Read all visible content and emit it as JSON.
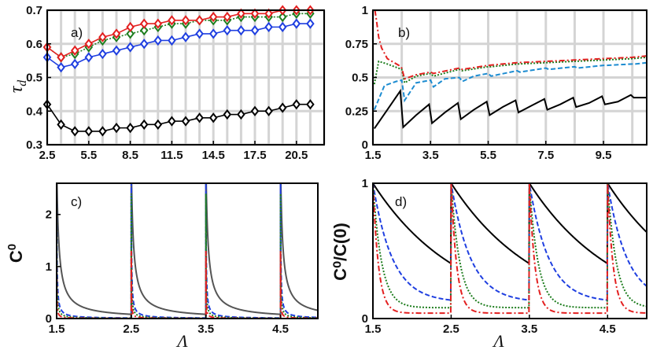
{
  "chart_data": [
    {
      "id": "a",
      "type": "line",
      "panel_label": "a)",
      "ylabel": "τ_d",
      "ylabel_sub": "d",
      "ylabel_main": "τ",
      "xlabel": "",
      "xlim": [
        2.5,
        22.5
      ],
      "ylim": [
        0.3,
        0.7
      ],
      "grid": true,
      "xticks": [
        2.5,
        5.5,
        8.5,
        11.5,
        14.5,
        17.5,
        20.5
      ],
      "xtick_labels": [
        "2.5",
        "5.5",
        "8.5",
        "11.5",
        "14.5",
        "17.5",
        "20.5"
      ],
      "yticks": [
        0.3,
        0.4,
        0.5,
        0.6,
        0.7
      ],
      "ytick_labels": [
        "0.3",
        "0.4",
        "0.5",
        "0.6",
        "0.7"
      ],
      "x": [
        2.5,
        3.5,
        4.5,
        5.5,
        6.5,
        7.5,
        8.5,
        9.5,
        10.5,
        11.5,
        12.5,
        13.5,
        14.5,
        15.5,
        16.5,
        17.5,
        18.5,
        19.5,
        20.5,
        21.5
      ],
      "series": [
        {
          "name": "black",
          "color": "#000000",
          "dash": "",
          "marker": "diamond",
          "values": [
            0.42,
            0.36,
            0.34,
            0.34,
            0.34,
            0.35,
            0.35,
            0.36,
            0.36,
            0.37,
            0.37,
            0.38,
            0.38,
            0.39,
            0.39,
            0.4,
            0.4,
            0.41,
            0.42,
            0.42
          ]
        },
        {
          "name": "blue",
          "color": "#1f3fe0",
          "dash": "",
          "marker": "diamond",
          "values": [
            0.56,
            0.53,
            0.54,
            0.56,
            0.57,
            0.58,
            0.59,
            0.6,
            0.61,
            0.61,
            0.62,
            0.63,
            0.63,
            0.64,
            0.64,
            0.64,
            0.65,
            0.65,
            0.66,
            0.66
          ]
        },
        {
          "name": "green",
          "color": "#1e7d1e",
          "dash": "2,2",
          "marker": "diamond",
          "values": [
            0.59,
            0.56,
            0.57,
            0.59,
            0.61,
            0.62,
            0.63,
            0.64,
            0.65,
            0.66,
            0.66,
            0.67,
            0.67,
            0.67,
            0.68,
            0.68,
            0.68,
            0.68,
            0.69,
            0.69
          ]
        },
        {
          "name": "red",
          "color": "#e32020",
          "dash": "",
          "marker": "diamond",
          "values": [
            0.59,
            0.56,
            0.58,
            0.6,
            0.62,
            0.63,
            0.65,
            0.66,
            0.66,
            0.67,
            0.67,
            0.67,
            0.68,
            0.68,
            0.69,
            0.69,
            0.69,
            0.7,
            0.7,
            0.7
          ]
        }
      ]
    },
    {
      "id": "b",
      "type": "line",
      "panel_label": "b)",
      "ylabel": "",
      "xlabel": "",
      "xlim": [
        1.5,
        11.0
      ],
      "ylim": [
        0,
        1
      ],
      "grid": true,
      "xticks": [
        1.5,
        3.5,
        5.5,
        7.5,
        9.5
      ],
      "xtick_labels": [
        "1.5",
        "3.5",
        "5.5",
        "7.5",
        "9.5"
      ],
      "yticks": [
        0,
        0.25,
        0.5,
        0.75,
        1
      ],
      "ytick_labels": [
        "0",
        "0.25",
        "0.5",
        "0.75",
        "1"
      ],
      "series": [
        {
          "name": "black",
          "color": "#000000",
          "dash": "",
          "x": [
            1.55,
            2.0,
            2.45,
            2.55,
            3.0,
            3.45,
            3.55,
            4.0,
            4.45,
            4.55,
            5.0,
            5.45,
            5.55,
            6.0,
            6.45,
            6.55,
            7.0,
            7.45,
            7.55,
            8.0,
            8.45,
            8.55,
            9.0,
            9.45,
            9.55,
            10.0,
            10.45,
            10.55,
            11.0
          ],
          "values": [
            0.12,
            0.26,
            0.4,
            0.13,
            0.22,
            0.3,
            0.16,
            0.24,
            0.31,
            0.19,
            0.26,
            0.32,
            0.22,
            0.28,
            0.33,
            0.24,
            0.29,
            0.34,
            0.26,
            0.3,
            0.35,
            0.28,
            0.31,
            0.36,
            0.3,
            0.32,
            0.37,
            0.35,
            0.35
          ]
        },
        {
          "name": "cyan",
          "color": "#1d8cd1",
          "dash": "6,3",
          "x": [
            1.55,
            1.9,
            2.3,
            2.5,
            2.6,
            3.0,
            3.5,
            3.6,
            4.0,
            4.5,
            4.6,
            5.0,
            5.5,
            5.6,
            6.5,
            6.6,
            7.5,
            7.6,
            8.5,
            8.6,
            9.5,
            9.6,
            10.5,
            10.6,
            11.0
          ],
          "values": [
            0.26,
            0.44,
            0.47,
            0.48,
            0.33,
            0.46,
            0.48,
            0.43,
            0.49,
            0.5,
            0.47,
            0.51,
            0.53,
            0.51,
            0.55,
            0.54,
            0.57,
            0.56,
            0.58,
            0.57,
            0.59,
            0.59,
            0.6,
            0.6,
            0.61
          ]
        },
        {
          "name": "green",
          "color": "#1e7d1e",
          "dash": "2,2",
          "x": [
            1.55,
            1.7,
            2.0,
            2.5,
            2.6,
            3.0,
            3.5,
            3.6,
            4.5,
            4.6,
            5.5,
            5.6,
            6.5,
            7.5,
            8.5,
            9.5,
            10.5,
            11.0
          ],
          "values": [
            0.45,
            0.62,
            0.6,
            0.56,
            0.46,
            0.51,
            0.53,
            0.51,
            0.56,
            0.55,
            0.58,
            0.58,
            0.6,
            0.61,
            0.62,
            0.63,
            0.64,
            0.65
          ]
        },
        {
          "name": "red",
          "color": "#e32020",
          "dash": "7,3,2,3",
          "x": [
            1.57,
            1.62,
            1.7,
            1.8,
            2.0,
            2.4,
            2.5,
            2.6,
            3.0,
            3.5,
            3.6,
            4.5,
            4.6,
            5.5,
            6.5,
            7.5,
            8.5,
            9.5,
            10.5,
            11.0
          ],
          "values": [
            1.0,
            0.93,
            0.8,
            0.72,
            0.64,
            0.59,
            0.57,
            0.49,
            0.52,
            0.54,
            0.53,
            0.57,
            0.56,
            0.59,
            0.61,
            0.62,
            0.63,
            0.64,
            0.65,
            0.66
          ]
        }
      ]
    },
    {
      "id": "c",
      "type": "line",
      "panel_label": "c)",
      "ylabel": "C",
      "ylabel_sup": "0",
      "xlabel": "Λ",
      "xlim": [
        1.5,
        5.0
      ],
      "ylim": [
        0,
        2.6
      ],
      "grid": false,
      "xticks": [
        1.5,
        2.5,
        3.5,
        4.5
      ],
      "xtick_labels": [
        "1.5",
        "2.5",
        "3.5",
        "4.5"
      ],
      "yticks": [
        0,
        1,
        2
      ],
      "ytick_labels": [
        "0",
        "1",
        "2"
      ],
      "periods": [
        1.5,
        2.5,
        3.5,
        4.5
      ],
      "series": [
        {
          "name": "gray",
          "color": "#555555",
          "dash": "",
          "peak": 3.0,
          "decay": 6.0,
          "floor": 0.0
        },
        {
          "name": "blue",
          "color": "#1f3fe0",
          "dash": "6,3",
          "peak": 2.6,
          "decay": 40.0,
          "floor": 0.0
        },
        {
          "name": "green",
          "color": "#1e7d1e",
          "dash": "2,2",
          "peak": 2.4,
          "decay": 70.0,
          "floor": 0.0
        },
        {
          "name": "red",
          "color": "#e32020",
          "dash": "7,3,2,3",
          "peak": 1.3,
          "decay": 90.0,
          "floor": 0.0
        }
      ]
    },
    {
      "id": "d",
      "type": "line",
      "panel_label": "d)",
      "ylabel": "C⁰/C(0)",
      "xlabel": "Λ",
      "xlim": [
        1.5,
        5.0
      ],
      "ylim": [
        0,
        1
      ],
      "grid": false,
      "xticks": [
        1.5,
        2.5,
        3.5,
        4.5
      ],
      "xtick_labels": [
        "1.5",
        "2.5",
        "3.5",
        "4.5"
      ],
      "yticks": [
        0,
        1
      ],
      "ytick_labels": [
        "0",
        "1"
      ],
      "periods": [
        1.5,
        2.5,
        3.5,
        4.5
      ],
      "series": [
        {
          "name": "black",
          "color": "#000000",
          "dash": "",
          "a": 1.0,
          "rate": 0.9,
          "floor": 0.0
        },
        {
          "name": "blue",
          "color": "#1f3fe0",
          "dash": "6,3",
          "a": 0.88,
          "rate": 4.0,
          "floor": 0.12
        },
        {
          "name": "green",
          "color": "#1e7d1e",
          "dash": "2,2",
          "a": 0.92,
          "rate": 9.0,
          "floor": 0.08
        },
        {
          "name": "red",
          "color": "#e32020",
          "dash": "7,3,2,3",
          "a": 0.96,
          "rate": 14.0,
          "floor": 0.04
        }
      ]
    }
  ]
}
